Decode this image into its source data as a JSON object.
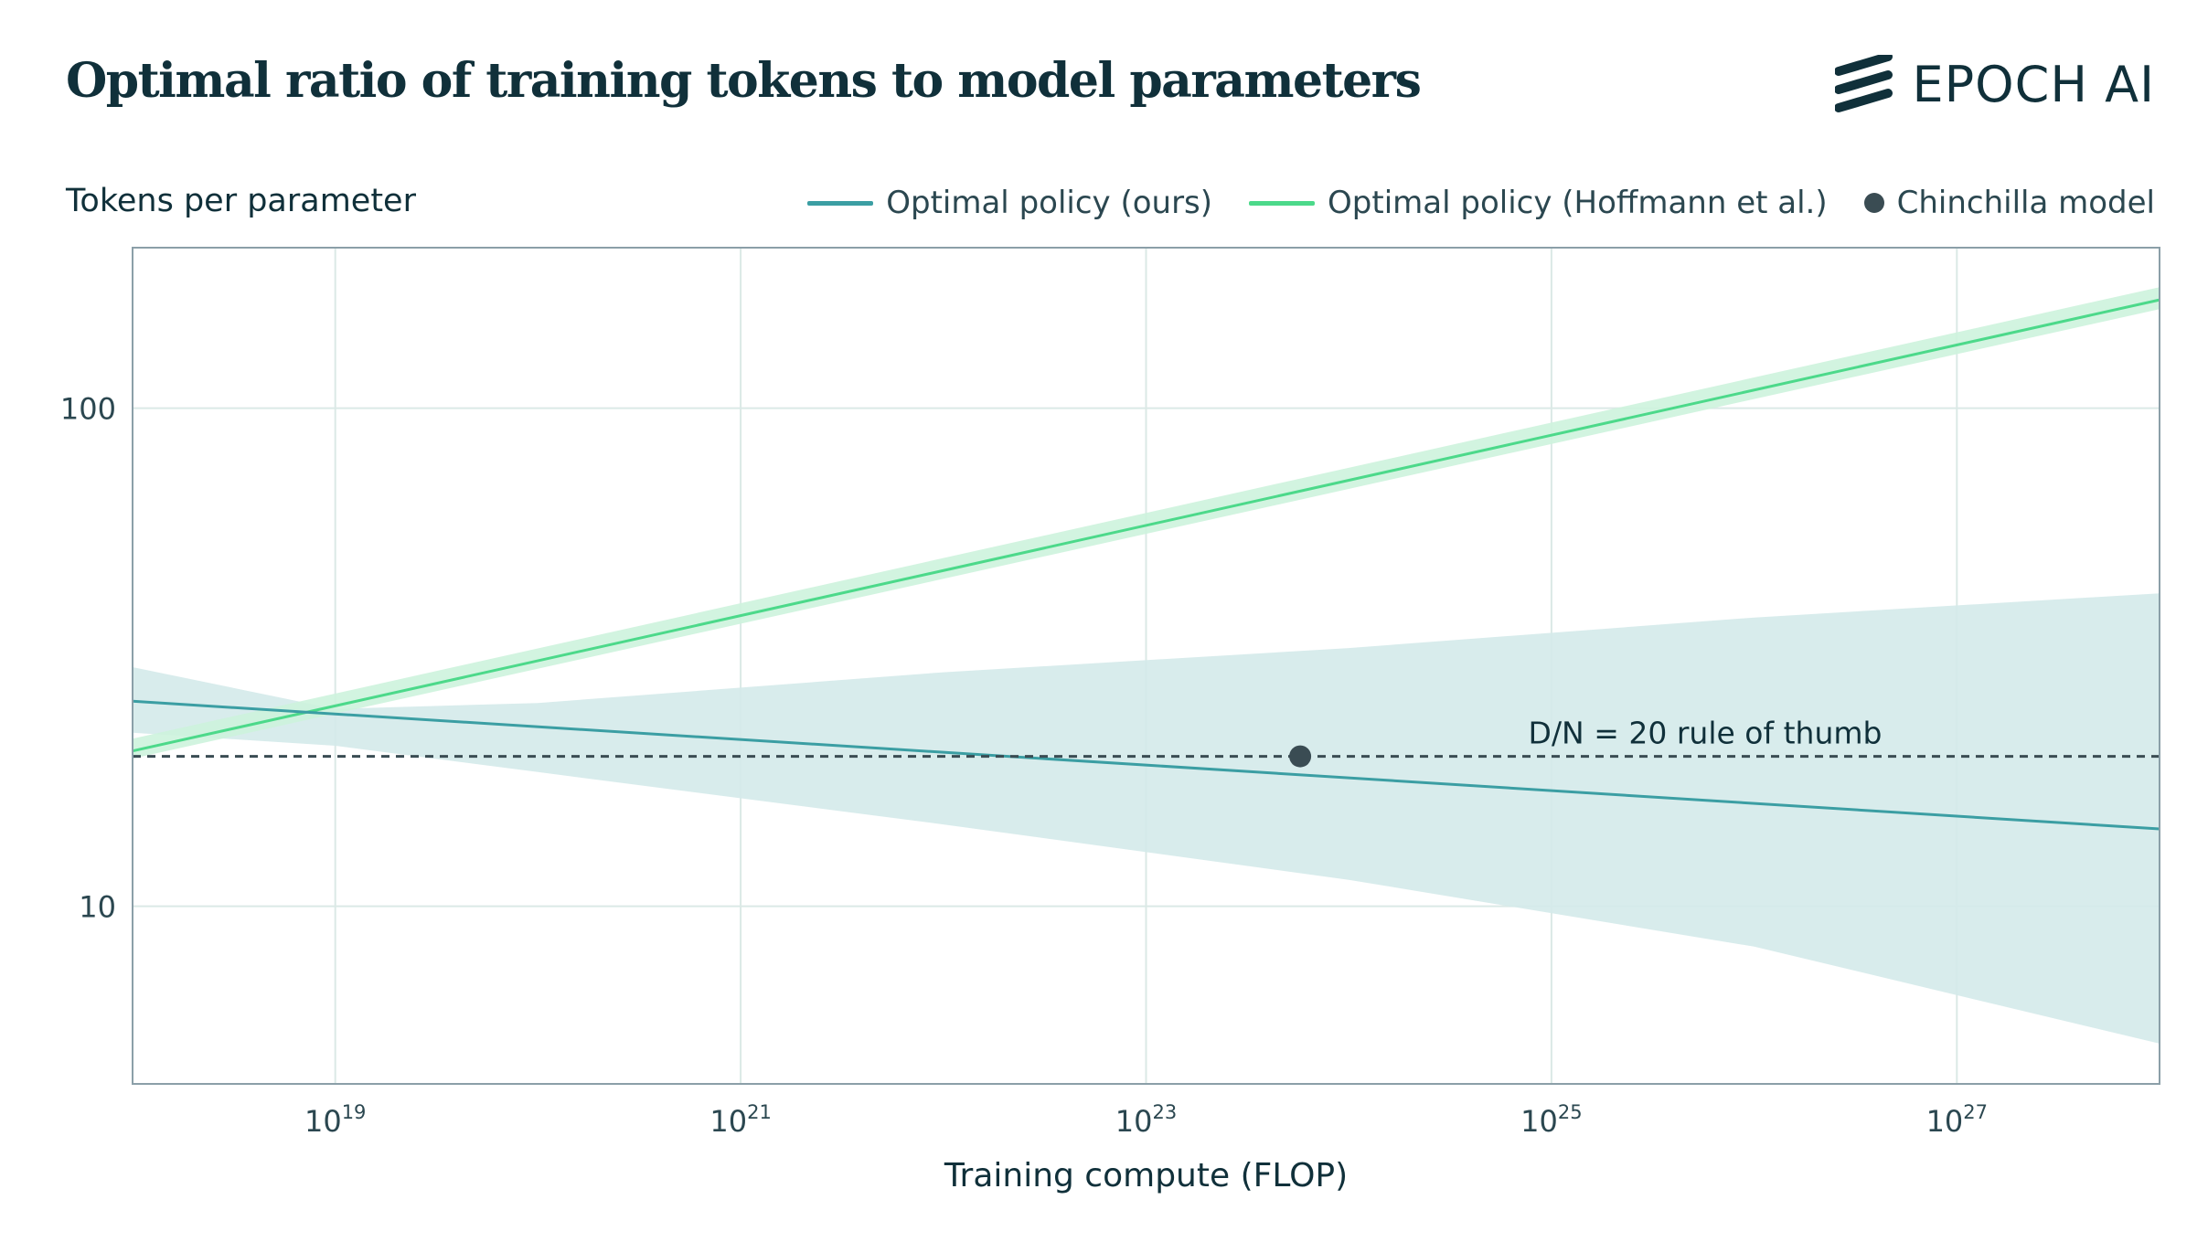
{
  "header": {
    "title": "Optimal ratio of training tokens to model parameters",
    "brand": "EPOCH AI"
  },
  "colors": {
    "ours": "#3b9ea3",
    "hoffmann": "#4cd98a",
    "chinchilla": "#3a4c53",
    "band_ours": "#d4eaea",
    "band_hoffmann": "#cdf3dd",
    "grid": "#dbe9e6",
    "frame": "#8b9fa8"
  },
  "chart_data": {
    "type": "line",
    "title": "Optimal ratio of training tokens to model parameters",
    "xlabel": "Training compute (FLOP)",
    "ylabel": "Tokens per parameter",
    "xscale": "log",
    "yscale": "log",
    "xlim": [
      1e+18,
      1e+28
    ],
    "ylim": [
      4.4,
      210
    ],
    "xticks": [
      {
        "value": 1e+19,
        "base": "10",
        "exp": "19"
      },
      {
        "value": 1e+21,
        "base": "10",
        "exp": "21"
      },
      {
        "value": 1e+23,
        "base": "10",
        "exp": "23"
      },
      {
        "value": 1e+25,
        "base": "10",
        "exp": "25"
      },
      {
        "value": 1e+27,
        "base": "10",
        "exp": "27"
      }
    ],
    "yticks": [
      {
        "value": 10,
        "label": "10"
      },
      {
        "value": 100,
        "label": "100"
      }
    ],
    "grid": true,
    "legend_position": "top-right",
    "series": [
      {
        "name": "Optimal policy (ours)",
        "kind": "line",
        "x": [
          1e+18,
          1e+28
        ],
        "y": [
          25.8,
          14.3
        ],
        "band_lower": [
          [
            1e+18,
            22.3
          ],
          [
            1e+19,
            21.0
          ],
          [
            1e+20,
            18.6
          ],
          [
            1e+22,
            14.6
          ],
          [
            1e+24,
            11.3
          ],
          [
            1e+26,
            8.3
          ],
          [
            1e+28,
            5.3
          ]
        ],
        "band_upper": [
          [
            1e+18,
            30.2
          ],
          [
            1e+19,
            24.9
          ],
          [
            1e+20,
            25.6
          ],
          [
            1e+22,
            29.5
          ],
          [
            1e+24,
            33.0
          ],
          [
            1e+26,
            38.0
          ],
          [
            1e+28,
            42.5
          ]
        ]
      },
      {
        "name": "Optimal policy (Hoffmann et al.)",
        "kind": "line",
        "x": [
          1e+18,
          1e+28
        ],
        "y": [
          20.5,
          165
        ],
        "band_lower": [
          [
            1e+18,
            19.8
          ],
          [
            1e+28,
            158
          ]
        ],
        "band_upper": [
          [
            1e+18,
            21.7
          ],
          [
            1e+28,
            175
          ]
        ]
      },
      {
        "name": "Chinchilla model",
        "kind": "point",
        "x": [
          5.76e+23
        ],
        "y": [
          20
        ]
      }
    ],
    "reference_line": {
      "y": 20,
      "label": "D/N = 20 rule of thumb"
    }
  }
}
